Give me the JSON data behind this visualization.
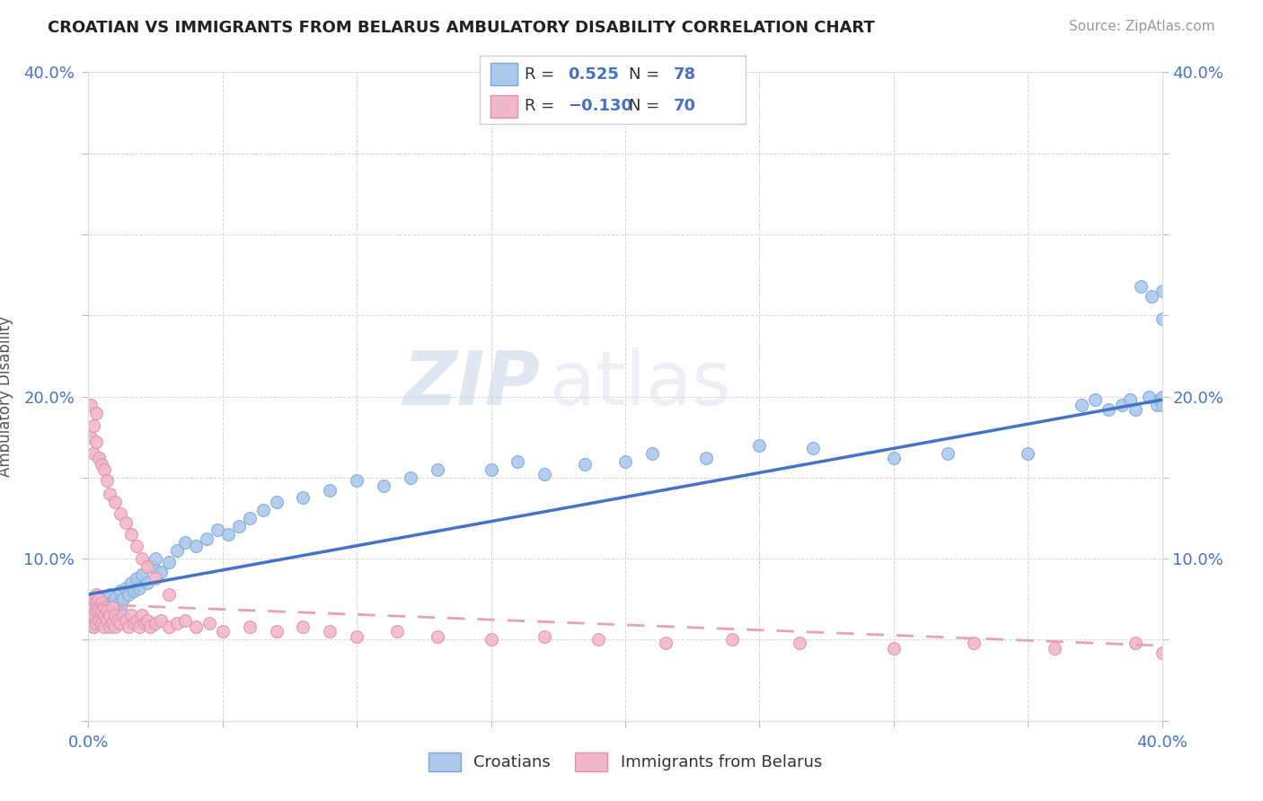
{
  "title": "CROATIAN VS IMMIGRANTS FROM BELARUS AMBULATORY DISABILITY CORRELATION CHART",
  "source": "Source: ZipAtlas.com",
  "ylabel": "Ambulatory Disability",
  "xlim": [
    0.0,
    0.4
  ],
  "ylim": [
    0.0,
    0.4
  ],
  "blue_R": 0.525,
  "blue_N": 78,
  "pink_R": -0.13,
  "pink_N": 70,
  "blue_color": "#adc8ed",
  "blue_edge": "#7aaad4",
  "pink_color": "#f2b8ca",
  "pink_edge": "#e090aa",
  "blue_line_color": "#4472c4",
  "pink_line_color": "#e8a0b8",
  "blue_line": [
    0.0,
    0.078,
    0.4,
    0.198
  ],
  "pink_line": [
    0.0,
    0.072,
    0.5,
    0.04
  ],
  "watermark_top": "ZIP",
  "watermark_bot": "atlas",
  "blue_x": [
    0.001,
    0.002,
    0.002,
    0.003,
    0.003,
    0.004,
    0.004,
    0.005,
    0.005,
    0.006,
    0.006,
    0.007,
    0.007,
    0.008,
    0.008,
    0.009,
    0.009,
    0.01,
    0.01,
    0.011,
    0.012,
    0.012,
    0.013,
    0.014,
    0.015,
    0.016,
    0.017,
    0.018,
    0.019,
    0.02,
    0.022,
    0.024,
    0.025,
    0.027,
    0.03,
    0.033,
    0.036,
    0.04,
    0.044,
    0.048,
    0.052,
    0.056,
    0.06,
    0.065,
    0.07,
    0.08,
    0.09,
    0.1,
    0.11,
    0.12,
    0.13,
    0.15,
    0.16,
    0.17,
    0.185,
    0.2,
    0.21,
    0.23,
    0.25,
    0.27,
    0.3,
    0.32,
    0.35,
    0.37,
    0.375,
    0.38,
    0.385,
    0.388,
    0.39,
    0.392,
    0.395,
    0.396,
    0.398,
    0.399,
    0.4,
    0.4,
    0.4,
    0.4
  ],
  "blue_y": [
    0.065,
    0.058,
    0.072,
    0.06,
    0.068,
    0.063,
    0.075,
    0.07,
    0.062,
    0.065,
    0.075,
    0.068,
    0.072,
    0.065,
    0.078,
    0.06,
    0.073,
    0.068,
    0.076,
    0.072,
    0.07,
    0.08,
    0.075,
    0.082,
    0.078,
    0.085,
    0.08,
    0.088,
    0.082,
    0.09,
    0.085,
    0.095,
    0.1,
    0.092,
    0.098,
    0.105,
    0.11,
    0.108,
    0.112,
    0.118,
    0.115,
    0.12,
    0.125,
    0.13,
    0.135,
    0.138,
    0.142,
    0.148,
    0.145,
    0.15,
    0.155,
    0.155,
    0.16,
    0.152,
    0.158,
    0.16,
    0.165,
    0.162,
    0.17,
    0.168,
    0.162,
    0.165,
    0.165,
    0.195,
    0.198,
    0.192,
    0.195,
    0.198,
    0.192,
    0.268,
    0.2,
    0.262,
    0.195,
    0.198,
    0.265,
    0.248,
    0.2,
    0.195
  ],
  "pink_x": [
    0.001,
    0.001,
    0.001,
    0.002,
    0.002,
    0.002,
    0.002,
    0.003,
    0.003,
    0.003,
    0.003,
    0.004,
    0.004,
    0.004,
    0.005,
    0.005,
    0.005,
    0.006,
    0.006,
    0.006,
    0.007,
    0.007,
    0.008,
    0.008,
    0.009,
    0.009,
    0.01,
    0.01,
    0.011,
    0.012,
    0.013,
    0.014,
    0.015,
    0.016,
    0.017,
    0.018,
    0.019,
    0.02,
    0.021,
    0.022,
    0.023,
    0.025,
    0.027,
    0.03,
    0.033,
    0.036,
    0.04,
    0.045,
    0.05,
    0.06,
    0.07,
    0.08,
    0.09,
    0.1,
    0.115,
    0.13,
    0.15,
    0.17,
    0.19,
    0.215,
    0.24,
    0.265,
    0.3,
    0.33,
    0.36,
    0.39,
    0.4,
    0.405,
    0.415,
    0.42
  ],
  "pink_y": [
    0.062,
    0.068,
    0.072,
    0.058,
    0.065,
    0.07,
    0.075,
    0.06,
    0.068,
    0.073,
    0.078,
    0.062,
    0.068,
    0.075,
    0.06,
    0.068,
    0.073,
    0.058,
    0.065,
    0.07,
    0.062,
    0.068,
    0.058,
    0.065,
    0.06,
    0.07,
    0.058,
    0.065,
    0.062,
    0.06,
    0.065,
    0.062,
    0.058,
    0.065,
    0.06,
    0.062,
    0.058,
    0.065,
    0.06,
    0.062,
    0.058,
    0.06,
    0.062,
    0.058,
    0.06,
    0.062,
    0.058,
    0.06,
    0.055,
    0.058,
    0.055,
    0.058,
    0.055,
    0.052,
    0.055,
    0.052,
    0.05,
    0.052,
    0.05,
    0.048,
    0.05,
    0.048,
    0.045,
    0.048,
    0.045,
    0.048,
    0.042,
    0.045,
    0.042,
    0.045
  ],
  "pink_outlier_x": [
    0.001,
    0.001,
    0.002,
    0.002,
    0.003,
    0.003,
    0.004,
    0.005,
    0.006,
    0.007,
    0.008,
    0.01,
    0.012,
    0.014,
    0.016,
    0.018,
    0.02,
    0.022,
    0.025,
    0.03
  ],
  "pink_outlier_y": [
    0.175,
    0.195,
    0.182,
    0.165,
    0.19,
    0.172,
    0.162,
    0.158,
    0.155,
    0.148,
    0.14,
    0.135,
    0.128,
    0.122,
    0.115,
    0.108,
    0.1,
    0.095,
    0.088,
    0.078
  ]
}
